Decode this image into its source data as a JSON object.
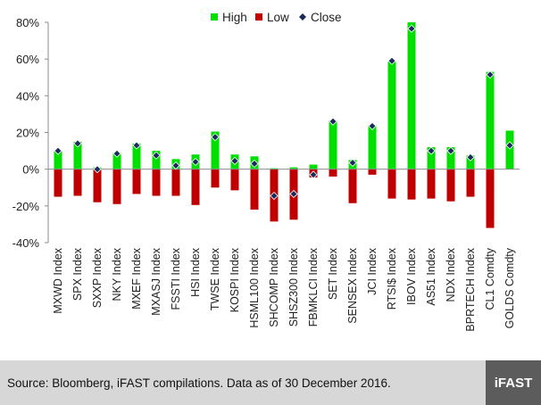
{
  "chart_data": {
    "type": "bar",
    "categories": [
      "MXWD Index",
      "SPX Index",
      "SXXP Index",
      "NKY Index",
      "MXEF Index",
      "MXASJ Index",
      "FSSTI Index",
      "HSI Index",
      "TWSE Index",
      "KOSPI Index",
      "HSML100 Index",
      "SHCOMP Index",
      "SHSZ300 Index",
      "FBMKLCI Index",
      "SET Index",
      "SENSEX Index",
      "JCI Index",
      "RTSI$ Index",
      "IBOV Index",
      "AS51 Index",
      "NDX Index",
      "BPRTECH Index",
      "CL1 Comdty",
      "GOLDS Comdty"
    ],
    "series": [
      {
        "name": "High",
        "color": "#00e000",
        "values": [
          10,
          15,
          1,
          9,
          14,
          10,
          5.5,
          8,
          20.5,
          8,
          7,
          0.5,
          1,
          2.5,
          26.5,
          5,
          24,
          58.5,
          80,
          12,
          12,
          7.5,
          53,
          21
        ]
      },
      {
        "name": "Low",
        "color": "#c00000",
        "values": [
          -15,
          -14.5,
          -18,
          -19,
          -13.5,
          -14.5,
          -14.5,
          -19.5,
          -10,
          -11.5,
          -22,
          -28.5,
          -27.5,
          -4.5,
          -4,
          -18.5,
          -3,
          -16,
          -16.5,
          -16,
          -17.5,
          -15,
          -32,
          0
        ]
      },
      {
        "name": "Close",
        "color": "#1a2a5a",
        "values": [
          10,
          14,
          0,
          8.5,
          13,
          7.5,
          2,
          4,
          17.5,
          4.5,
          3,
          -14.5,
          -13.5,
          -3,
          26,
          3.5,
          23.5,
          59,
          76.5,
          10,
          10,
          6.5,
          51.5,
          13
        ]
      }
    ],
    "ylim": [
      -40,
      80
    ],
    "yticks": [
      -40,
      -20,
      0,
      20,
      40,
      60,
      80
    ],
    "ytick_labels": [
      "-40%",
      "-20%",
      "0%",
      "20%",
      "40%",
      "60%",
      "80%"
    ],
    "legend_position": "top-center",
    "grid": false
  },
  "footer": {
    "source": "Source: Bloomberg, iFAST compilations. Data as of 30 December 2016.",
    "logo_text": "iFAST"
  }
}
